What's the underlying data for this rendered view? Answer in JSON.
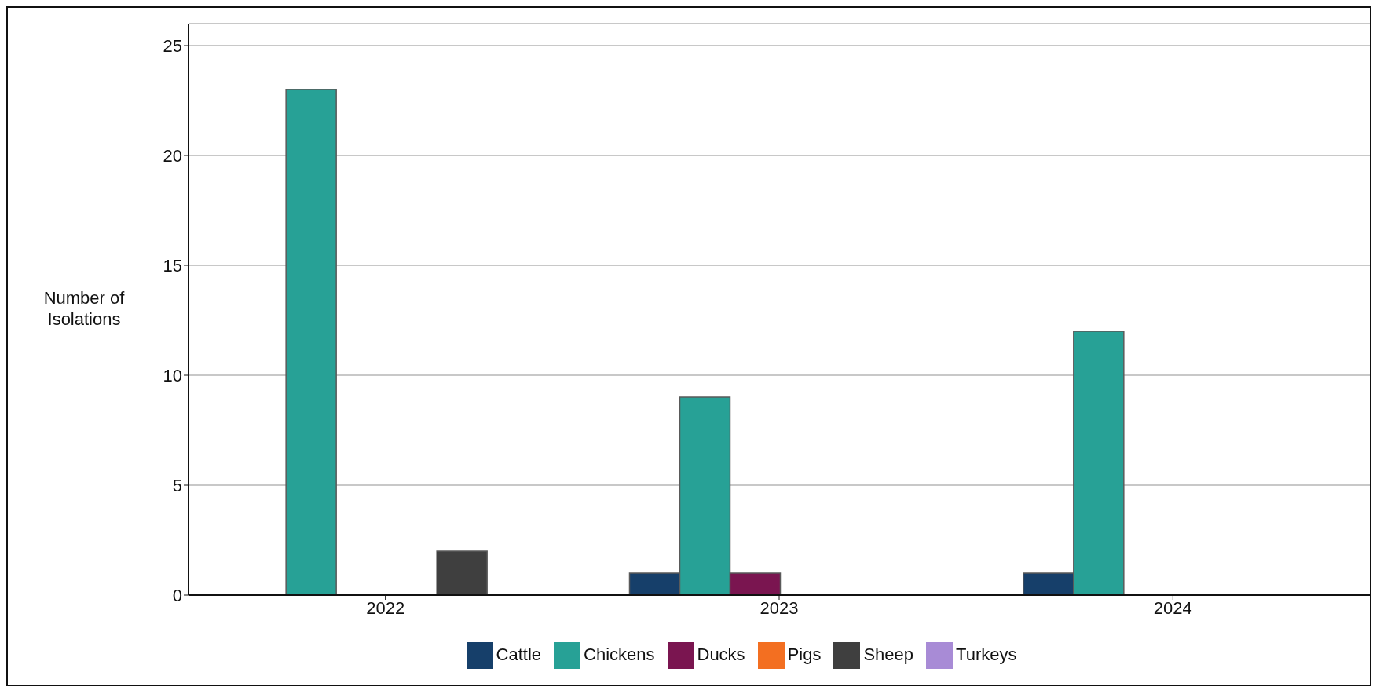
{
  "chart_data": {
    "type": "bar",
    "ylabel": "Number of Isolations",
    "categories": [
      "2022",
      "2023",
      "2024"
    ],
    "series": [
      {
        "name": "Cattle",
        "color": "#163f6a",
        "values": [
          null,
          1,
          1
        ]
      },
      {
        "name": "Chickens",
        "color": "#27a196",
        "values": [
          23,
          9,
          12
        ]
      },
      {
        "name": "Ducks",
        "color": "#7a1550",
        "values": [
          null,
          1,
          null
        ]
      },
      {
        "name": "Pigs",
        "color": "#f36f21",
        "values": [
          null,
          null,
          null
        ]
      },
      {
        "name": "Sheep",
        "color": "#3f3f3f",
        "values": [
          2,
          null,
          null
        ]
      },
      {
        "name": "Turkeys",
        "color": "#a88bd6",
        "values": [
          null,
          null,
          null
        ]
      }
    ],
    "ylim": [
      0,
      26
    ],
    "yticks": [
      0,
      5,
      10,
      15,
      20,
      25
    ],
    "grid": "y",
    "legend": "bottom"
  }
}
